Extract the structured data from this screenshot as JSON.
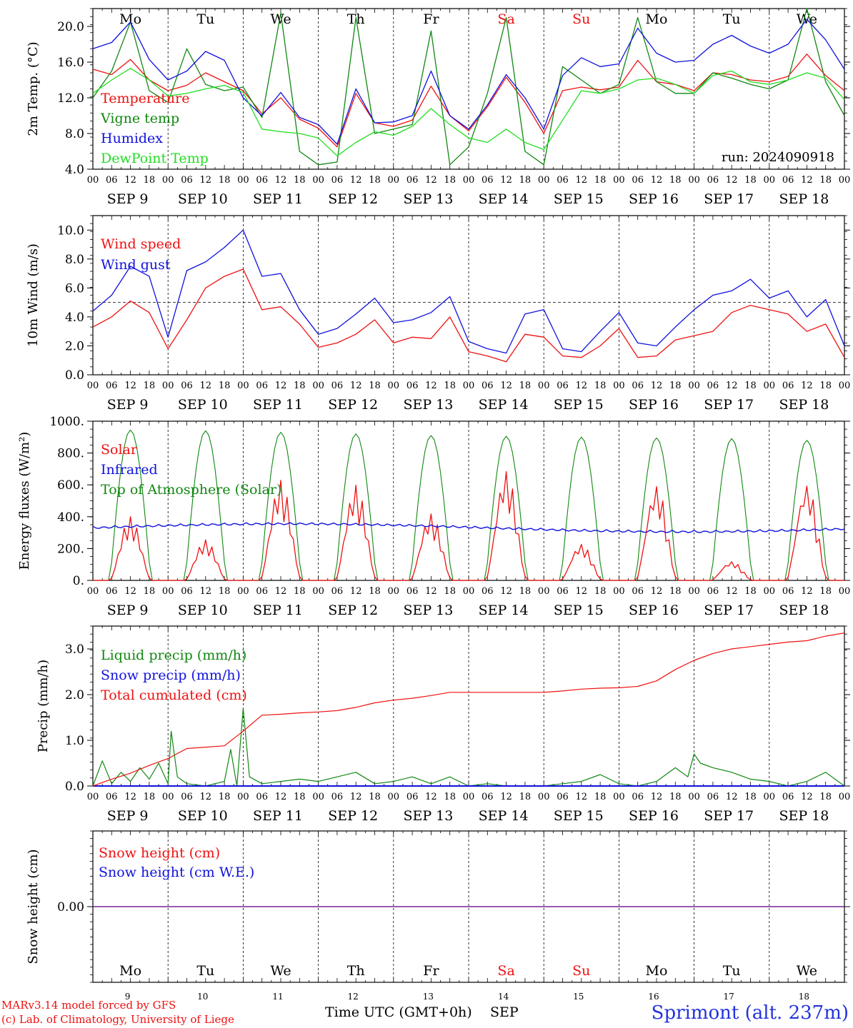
{
  "days": [
    "9",
    "10",
    "11",
    "12",
    "13",
    "14",
    "15",
    "16",
    "17",
    "18"
  ],
  "weekdays": [
    "Mo",
    "Tu",
    "We",
    "Th",
    "Fr",
    "Sa",
    "Su",
    "Mo",
    "Tu",
    "We"
  ],
  "weekend_indices": [
    5,
    6
  ],
  "month": "SEP",
  "hour_ticks": [
    "00",
    "06",
    "12",
    "18"
  ],
  "final_tick": "00",
  "footer": {
    "model": "MARv3.14 model forced by GFS",
    "credit": "(c) Lab. of Climatology, University of Liege",
    "xaxis_label": "Time UTC (GMT+0h)",
    "month_label": "SEP",
    "station": "Sprimont (alt. 237m)"
  },
  "colors": {
    "red": "#ee1111",
    "green": "#118811",
    "blue": "#1111dd",
    "lightgreen": "#22dd22",
    "purple": "#772299",
    "station": "#2233dd"
  },
  "chart_data": [
    {
      "type": "line",
      "ylabel": "2m Temp. (°C)",
      "ylim": [
        4,
        22
      ],
      "yticks": [
        "4.0",
        "8.0",
        "12.0",
        "16.0",
        "20.0"
      ],
      "ytick_values": [
        4,
        8,
        12,
        16,
        20
      ],
      "annotation": "run: 2024090918",
      "x_unit": "hours since SEP 9 00 UTC",
      "x": [
        0,
        6,
        12,
        18,
        24,
        30,
        36,
        42,
        48,
        54,
        60,
        66,
        72,
        78,
        84,
        90,
        96,
        102,
        108,
        114,
        120,
        126,
        132,
        138,
        144,
        150,
        156,
        162,
        168,
        174,
        180,
        186,
        192,
        198,
        204,
        210,
        216,
        222,
        228,
        234,
        240
      ],
      "series": [
        {
          "name": "Temperature",
          "color": "red",
          "values": [
            15.2,
            14.6,
            16.3,
            14.0,
            12.8,
            13.4,
            14.8,
            13.8,
            12.8,
            10.2,
            12.0,
            9.6,
            8.6,
            6.5,
            12.5,
            9.2,
            8.8,
            9.5,
            13.3,
            10.0,
            8.3,
            11.0,
            14.3,
            11.5,
            8.0,
            12.8,
            13.2,
            12.9,
            13.2,
            16.2,
            13.8,
            13.5,
            12.8,
            14.8,
            14.6,
            14.0,
            13.8,
            14.4,
            16.9,
            14.5,
            12.8
          ]
        },
        {
          "name": "Vigne temp",
          "color": "green",
          "values": [
            12.0,
            15.0,
            20.5,
            12.8,
            11.5,
            17.5,
            13.5,
            12.8,
            13.2,
            9.8,
            21.5,
            6.0,
            4.5,
            4.8,
            21.0,
            8.0,
            8.5,
            9.0,
            19.5,
            4.5,
            6.5,
            12.5,
            21.0,
            6.0,
            4.5,
            15.5,
            14.0,
            12.5,
            13.5,
            21.0,
            13.8,
            12.5,
            12.5,
            14.8,
            14.2,
            13.5,
            13.0,
            14.0,
            22.0,
            13.8,
            10.0
          ]
        },
        {
          "name": "Humidex",
          "color": "blue",
          "values": [
            17.5,
            18.2,
            20.5,
            16.3,
            14.0,
            15.0,
            17.2,
            16.2,
            12.0,
            10.0,
            12.6,
            9.8,
            9.0,
            6.8,
            13.0,
            9.2,
            9.3,
            10.0,
            15.0,
            10.0,
            8.5,
            11.2,
            14.6,
            12.0,
            8.5,
            14.5,
            16.5,
            15.5,
            15.8,
            19.8,
            17.0,
            16.0,
            16.2,
            18.0,
            19.0,
            17.8,
            17.0,
            18.0,
            20.8,
            18.5,
            15.2
          ]
        },
        {
          "name": "DewPoint Temp",
          "color": "lightgreen",
          "values": [
            12.5,
            14.0,
            15.3,
            14.0,
            12.2,
            12.5,
            13.0,
            13.4,
            12.6,
            8.5,
            8.2,
            8.0,
            7.5,
            5.5,
            7.0,
            8.2,
            7.8,
            8.8,
            10.8,
            9.0,
            7.5,
            7.0,
            8.5,
            7.0,
            6.2,
            9.5,
            12.8,
            12.5,
            13.0,
            14.0,
            14.2,
            13.5,
            12.5,
            14.5,
            15.0,
            13.8,
            13.5,
            14.0,
            14.8,
            14.2,
            11.8
          ]
        }
      ]
    },
    {
      "type": "line",
      "ylabel": "10m Wind (m/s)",
      "ylim": [
        0,
        11
      ],
      "yticks": [
        "0.0",
        "2.0",
        "4.0",
        "6.0",
        "8.0",
        "10.0"
      ],
      "ytick_values": [
        0,
        2,
        4,
        6,
        8,
        10
      ],
      "reference_line": 5,
      "x_unit": "hours since SEP 9 00 UTC",
      "x": [
        0,
        6,
        12,
        18,
        24,
        30,
        36,
        42,
        48,
        54,
        60,
        66,
        72,
        78,
        84,
        90,
        96,
        102,
        108,
        114,
        120,
        126,
        132,
        138,
        144,
        150,
        156,
        162,
        168,
        174,
        180,
        186,
        192,
        198,
        204,
        210,
        216,
        222,
        228,
        234,
        240
      ],
      "series": [
        {
          "name": "Wind speed",
          "color": "red",
          "values": [
            3.3,
            4.0,
            5.1,
            4.3,
            1.8,
            3.8,
            6.0,
            6.8,
            7.3,
            4.5,
            4.7,
            3.5,
            1.9,
            2.2,
            2.8,
            3.8,
            2.2,
            2.6,
            2.5,
            4.0,
            1.6,
            1.3,
            0.9,
            2.8,
            2.6,
            1.3,
            1.2,
            2.0,
            3.2,
            1.2,
            1.3,
            2.4,
            2.7,
            3.0,
            4.3,
            4.8,
            4.5,
            4.2,
            3.0,
            3.5,
            1.2
          ]
        },
        {
          "name": "Wind gust",
          "color": "blue",
          "values": [
            4.4,
            5.5,
            7.5,
            6.8,
            2.6,
            7.2,
            7.8,
            8.8,
            10.0,
            6.8,
            7.0,
            4.5,
            2.8,
            3.2,
            4.2,
            5.3,
            3.6,
            3.8,
            4.3,
            5.4,
            2.3,
            1.8,
            1.5,
            4.2,
            4.5,
            1.8,
            1.6,
            3.0,
            4.3,
            2.2,
            2.0,
            3.3,
            4.5,
            5.5,
            5.8,
            6.6,
            5.3,
            5.8,
            4.0,
            5.2,
            2.0
          ]
        }
      ]
    },
    {
      "type": "line",
      "ylabel": "Energy fluxes (W/m²)",
      "ylim": [
        0,
        1000
      ],
      "yticks": [
        "0.",
        "200.",
        "400.",
        "600.",
        "800.",
        "1000."
      ],
      "ytick_values": [
        0,
        200,
        400,
        600,
        800,
        1000
      ],
      "toa_peaks": [
        945,
        940,
        930,
        920,
        910,
        905,
        900,
        895,
        890,
        880
      ],
      "solar_peaks": [
        400,
        255,
        630,
        600,
        420,
        690,
        230,
        600,
        120,
        610
      ],
      "infrared_level": 340,
      "series": [
        {
          "name": "Solar",
          "color": "red"
        },
        {
          "name": "Infrared",
          "color": "blue"
        },
        {
          "name": "Top of Atmosphere (Solar)",
          "color": "green"
        }
      ]
    },
    {
      "type": "line",
      "ylabel": "Precip (mm/h)",
      "ylim": [
        0,
        3.5
      ],
      "yticks": [
        "0.0",
        "1.0",
        "2.0",
        "3.0"
      ],
      "ytick_values": [
        0,
        1,
        2,
        3
      ],
      "x_unit": "hours since SEP 9 00 UTC",
      "series": [
        {
          "name": "Liquid precip (mm/h)",
          "color": "green",
          "x": [
            0,
            3,
            6,
            9,
            12,
            15,
            18,
            21,
            24,
            25,
            27,
            30,
            36,
            42,
            44,
            46,
            48,
            50,
            54,
            60,
            66,
            72,
            78,
            84,
            90,
            96,
            102,
            108,
            114,
            120,
            126,
            132,
            138,
            144,
            150,
            156,
            162,
            168,
            174,
            180,
            186,
            190,
            192,
            194,
            198,
            204,
            210,
            216,
            222,
            228,
            234,
            240
          ],
          "values": [
            0.0,
            0.55,
            0.05,
            0.3,
            0.1,
            0.4,
            0.15,
            0.5,
            0.05,
            1.2,
            0.2,
            0.05,
            0.0,
            0.1,
            0.8,
            0.0,
            1.7,
            0.2,
            0.05,
            0.1,
            0.15,
            0.1,
            0.2,
            0.3,
            0.05,
            0.1,
            0.2,
            0.05,
            0.2,
            0.0,
            0.05,
            0.0,
            0.0,
            0.0,
            0.05,
            0.1,
            0.25,
            0.05,
            0.0,
            0.1,
            0.4,
            0.2,
            0.7,
            0.5,
            0.4,
            0.3,
            0.15,
            0.1,
            0.0,
            0.1,
            0.3,
            0.0
          ]
        },
        {
          "name": "Snow precip (mm/h)",
          "color": "blue",
          "x": [
            0,
            240
          ],
          "values": [
            0,
            0
          ]
        },
        {
          "name": "Total cumulated (cm)",
          "color": "red",
          "x": [
            0,
            6,
            12,
            18,
            24,
            30,
            36,
            42,
            48,
            54,
            60,
            66,
            72,
            78,
            84,
            90,
            96,
            102,
            108,
            114,
            120,
            126,
            132,
            138,
            144,
            150,
            156,
            162,
            168,
            174,
            180,
            186,
            192,
            198,
            204,
            210,
            216,
            222,
            228,
            234,
            240
          ],
          "values": [
            0.0,
            0.15,
            0.28,
            0.45,
            0.6,
            0.82,
            0.85,
            0.88,
            1.2,
            1.55,
            1.57,
            1.6,
            1.62,
            1.65,
            1.72,
            1.82,
            1.88,
            1.92,
            1.98,
            2.05,
            2.05,
            2.05,
            2.05,
            2.05,
            2.05,
            2.08,
            2.12,
            2.14,
            2.15,
            2.18,
            2.3,
            2.55,
            2.75,
            2.9,
            3.0,
            3.05,
            3.1,
            3.15,
            3.18,
            3.28,
            3.35
          ]
        }
      ]
    },
    {
      "type": "line",
      "ylabel": "Snow height (cm)",
      "ylim": [
        -1,
        1
      ],
      "yticks": [
        "0.00"
      ],
      "ytick_values": [
        0
      ],
      "series": [
        {
          "name": "Snow height (cm)",
          "color": "red",
          "x": [
            0,
            240
          ],
          "values": [
            0,
            0
          ]
        },
        {
          "name": "Snow height (cm W.E.)",
          "color": "blue",
          "x": [
            0,
            240
          ],
          "values": [
            0,
            0
          ]
        }
      ]
    }
  ]
}
